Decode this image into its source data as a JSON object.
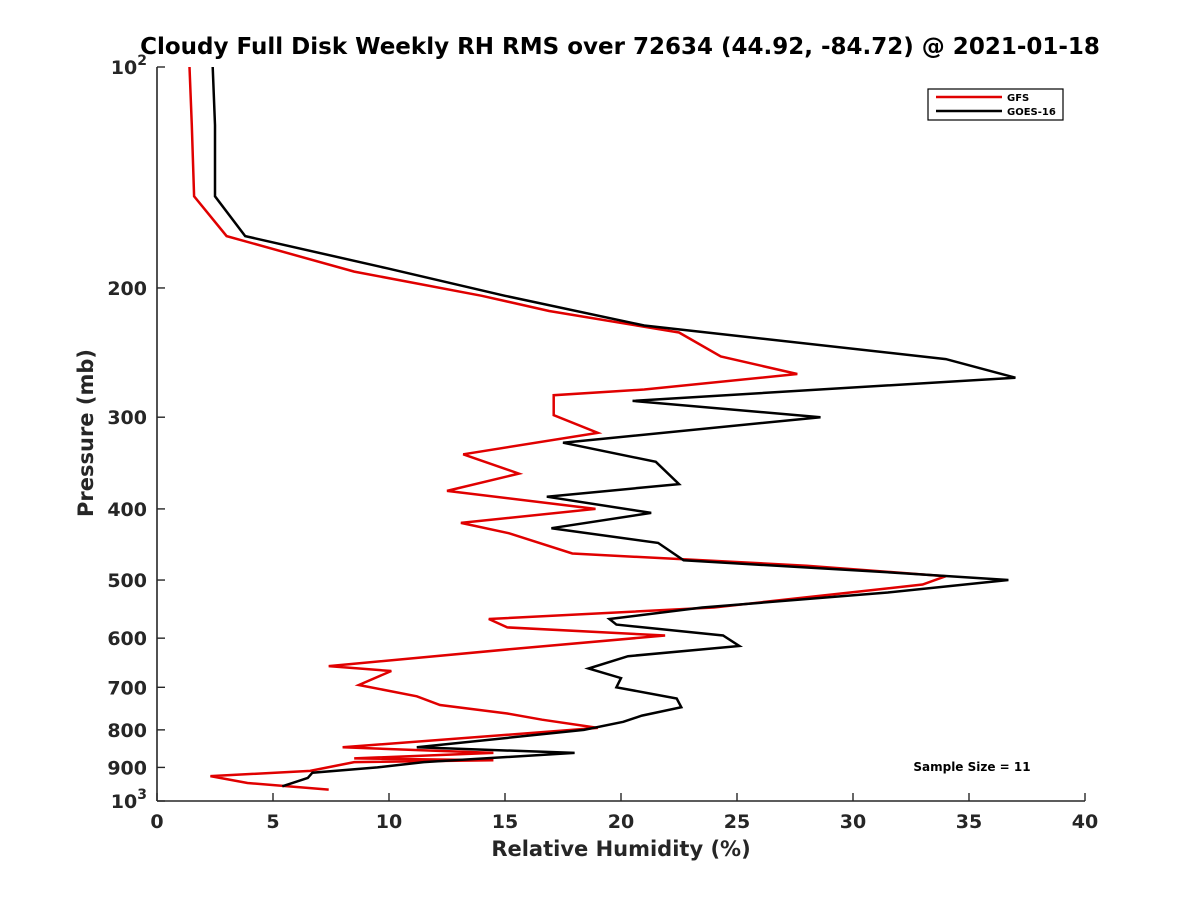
{
  "chart_data": {
    "type": "line",
    "title": "Cloudy Full Disk Weekly RH RMS over 72634 (44.92, -84.72) @ 2021-01-18",
    "xlabel": "Relative Humidity (%)",
    "ylabel": "Pressure (mb)",
    "xlim": [
      0,
      40
    ],
    "ylim": [
      100,
      1000
    ],
    "y_scale": "log",
    "y_reversed": true,
    "x_ticks": [
      "0",
      "5",
      "10",
      "15",
      "20",
      "25",
      "30",
      "35",
      "40"
    ],
    "y_ticks": [
      {
        "value": 100,
        "base": "10",
        "exp": "2"
      },
      {
        "value": 200,
        "label": "200"
      },
      {
        "value": 300,
        "label": "300"
      },
      {
        "value": 400,
        "label": "400"
      },
      {
        "value": 500,
        "label": "500"
      },
      {
        "value": 600,
        "label": "600"
      },
      {
        "value": 700,
        "label": "700"
      },
      {
        "value": 800,
        "label": "800"
      },
      {
        "value": 900,
        "label": "900"
      },
      {
        "value": 1000,
        "base": "10",
        "exp": "3"
      }
    ],
    "grid": false,
    "legend_position": "top-right",
    "annotation": "Sample Size = 11",
    "series": [
      {
        "name": "GFS",
        "color": "#e00000",
        "x": [
          1.4,
          1.5,
          1.6,
          3.0,
          8.5,
          14.0,
          16.9,
          22.5,
          24.3,
          27.6,
          21.0,
          17.1,
          17.1,
          19.0,
          13.2,
          15.6,
          12.5,
          18.9,
          13.1,
          15.2,
          17.9,
          28.0,
          34.0,
          33.0,
          24.0,
          14.3,
          15.1,
          21.9,
          15.5,
          7.4,
          10.1,
          8.7,
          11.2,
          12.2,
          15.1,
          16.6,
          19.0,
          8.0,
          14.5,
          8.5,
          14.5,
          8.5,
          6.6,
          2.3,
          3.9,
          7.4
        ],
        "y": [
          100,
          120,
          150,
          170,
          190,
          205,
          215,
          230,
          248,
          262,
          275,
          280,
          298,
          315,
          337,
          358,
          378,
          400,
          418,
          432,
          460,
          478,
          494,
          507,
          545,
          565,
          580,
          595,
          620,
          655,
          665,
          695,
          720,
          740,
          760,
          775,
          795,
          845,
          860,
          875,
          880,
          885,
          910,
          925,
          945,
          965
        ]
      },
      {
        "name": "GOES-16",
        "color": "#000000",
        "x": [
          2.4,
          2.5,
          2.5,
          3.8,
          9.9,
          15.0,
          21.0,
          34.0,
          37.0,
          20.5,
          28.6,
          17.5,
          21.5,
          22.5,
          16.8,
          21.3,
          17.0,
          21.6,
          22.7,
          31.5,
          36.7,
          31.5,
          23.5,
          19.5,
          19.8,
          24.4,
          25.1,
          20.3,
          18.6,
          20.0,
          19.8,
          22.4,
          22.6,
          20.9,
          20.1,
          18.4,
          11.2,
          18.0,
          11.5,
          9.5,
          6.7,
          6.5,
          5.4
        ],
        "y": [
          100,
          120,
          150,
          170,
          188,
          205,
          225,
          250,
          265,
          285,
          300,
          325,
          345,
          370,
          385,
          405,
          425,
          445,
          470,
          488,
          500,
          520,
          545,
          565,
          575,
          595,
          615,
          635,
          660,
          680,
          700,
          725,
          745,
          765,
          780,
          800,
          845,
          860,
          885,
          900,
          915,
          930,
          955
        ]
      }
    ]
  }
}
